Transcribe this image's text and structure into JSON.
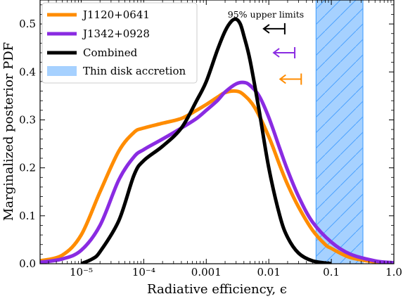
{
  "chart_data": {
    "type": "line",
    "title": "",
    "xlabel": "Radiative efficiency, ϵ",
    "ylabel": "Marginalized posterior PDF",
    "xscale": "log",
    "xlim": [
      2.2e-06,
      1.0
    ],
    "ylim": [
      0,
      0.55
    ],
    "xticks": [
      {
        "value": 1e-05,
        "label": "10⁻⁵"
      },
      {
        "value": 0.0001,
        "label": "10⁻⁴"
      },
      {
        "value": 0.001,
        "label": "0.001"
      },
      {
        "value": 0.01,
        "label": "0.01"
      },
      {
        "value": 0.1,
        "label": "0.1"
      },
      {
        "value": 1.0,
        "label": "1.0"
      }
    ],
    "yticks": [
      {
        "value": 0.0,
        "label": "0.0"
      },
      {
        "value": 0.1,
        "label": "0.1"
      },
      {
        "value": 0.2,
        "label": "0.2"
      },
      {
        "value": 0.3,
        "label": "0.3"
      },
      {
        "value": 0.4,
        "label": "0.4"
      },
      {
        "value": 0.5,
        "label": "0.5"
      }
    ],
    "grid": false,
    "legend_position": "upper-left",
    "series": [
      {
        "name": "J1120+0641",
        "color": "#ff8c00",
        "points": [
          [
            2.2e-06,
            0.006
          ],
          [
            5e-06,
            0.018
          ],
          [
            1e-05,
            0.06
          ],
          [
            2e-05,
            0.15
          ],
          [
            4e-05,
            0.235
          ],
          [
            7e-05,
            0.274
          ],
          [
            0.0001,
            0.283
          ],
          [
            0.0002,
            0.293
          ],
          [
            0.0004,
            0.303
          ],
          [
            0.0007,
            0.32
          ],
          [
            0.001,
            0.332
          ],
          [
            0.0015,
            0.347
          ],
          [
            0.002,
            0.357
          ],
          [
            0.003,
            0.36
          ],
          [
            0.004,
            0.352
          ],
          [
            0.006,
            0.325
          ],
          [
            0.01,
            0.265
          ],
          [
            0.015,
            0.205
          ],
          [
            0.02,
            0.165
          ],
          [
            0.03,
            0.118
          ],
          [
            0.05,
            0.07
          ],
          [
            0.08,
            0.04
          ],
          [
            0.1,
            0.032
          ],
          [
            0.2,
            0.013
          ],
          [
            0.5,
            0.004
          ],
          [
            1.0,
            0.001
          ]
        ]
      },
      {
        "name": "J1342+0928",
        "color": "#8a2be2",
        "points": [
          [
            2.2e-06,
            0.003
          ],
          [
            5e-06,
            0.01
          ],
          [
            1e-05,
            0.028
          ],
          [
            2e-05,
            0.08
          ],
          [
            4e-05,
            0.175
          ],
          [
            7e-05,
            0.223
          ],
          [
            0.0001,
            0.238
          ],
          [
            0.0002,
            0.26
          ],
          [
            0.0004,
            0.283
          ],
          [
            0.0007,
            0.303
          ],
          [
            0.001,
            0.32
          ],
          [
            0.0015,
            0.34
          ],
          [
            0.002,
            0.358
          ],
          [
            0.003,
            0.375
          ],
          [
            0.004,
            0.378
          ],
          [
            0.005,
            0.372
          ],
          [
            0.007,
            0.35
          ],
          [
            0.01,
            0.305
          ],
          [
            0.015,
            0.24
          ],
          [
            0.02,
            0.195
          ],
          [
            0.03,
            0.14
          ],
          [
            0.05,
            0.087
          ],
          [
            0.1,
            0.045
          ],
          [
            0.2,
            0.02
          ],
          [
            0.5,
            0.006
          ],
          [
            1.0,
            0.002
          ]
        ]
      },
      {
        "name": "Combined",
        "color": "#000000",
        "points": [
          [
            1e-05,
            0.0
          ],
          [
            1.5e-05,
            0.01
          ],
          [
            2e-05,
            0.025
          ],
          [
            4e-05,
            0.09
          ],
          [
            7e-05,
            0.185
          ],
          [
            0.0001,
            0.215
          ],
          [
            0.0002,
            0.245
          ],
          [
            0.0004,
            0.283
          ],
          [
            0.0007,
            0.34
          ],
          [
            0.001,
            0.38
          ],
          [
            0.0015,
            0.445
          ],
          [
            0.002,
            0.485
          ],
          [
            0.0025,
            0.505
          ],
          [
            0.003,
            0.51
          ],
          [
            0.0035,
            0.5
          ],
          [
            0.004,
            0.475
          ],
          [
            0.005,
            0.425
          ],
          [
            0.007,
            0.32
          ],
          [
            0.01,
            0.2
          ],
          [
            0.015,
            0.1
          ],
          [
            0.02,
            0.055
          ],
          [
            0.03,
            0.022
          ],
          [
            0.05,
            0.006
          ],
          [
            0.1,
            0.0
          ]
        ]
      }
    ],
    "shaded_region": {
      "label": "Thin disk accretion",
      "x_range": [
        0.057,
        0.32
      ],
      "color": "#a6d1ff",
      "edge_color": "#4da3ff",
      "hatch": "diagonal"
    },
    "upper_limits": {
      "title": "95% upper limits",
      "markers": [
        {
          "series": "Combined",
          "x": 0.018,
          "y": 0.49,
          "color": "#000000"
        },
        {
          "series": "J1342+0928",
          "x": 0.026,
          "y": 0.44,
          "color": "#8a2be2"
        },
        {
          "series": "J1120+0641",
          "x": 0.033,
          "y": 0.385,
          "color": "#ff8c00"
        }
      ]
    }
  }
}
